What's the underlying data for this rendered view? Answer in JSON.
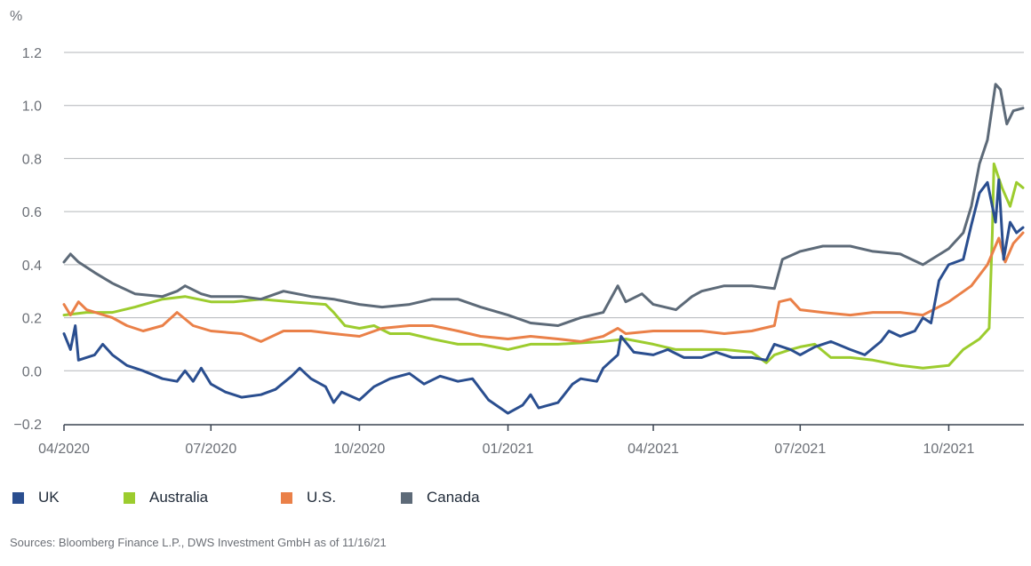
{
  "chart_data": {
    "type": "line",
    "title": "",
    "xlabel": "",
    "ylabel": "%",
    "ylim": [
      -0.2,
      1.2
    ],
    "xlim": [
      "2020-04-01",
      "2021-11-16"
    ],
    "grid": true,
    "legend_position": "bottom",
    "y_ticks": [
      "1.2",
      "1.0",
      "0.8",
      "0.6",
      "0.4",
      "0.2",
      "0.0",
      "−0.2"
    ],
    "x_ticks": [
      "04/2020",
      "07/2020",
      "10/2020",
      "01/2021",
      "04/2021",
      "07/2021",
      "10/2021"
    ],
    "x_tick_dates": [
      "2020-04-01",
      "2020-07-01",
      "2020-10-01",
      "2021-01-01",
      "2021-04-01",
      "2021-07-01",
      "2021-10-01"
    ],
    "series": [
      {
        "name": "UK",
        "color": "#2a4e8f",
        "points": [
          [
            "2020-04-01",
            0.14
          ],
          [
            "2020-04-05",
            0.08
          ],
          [
            "2020-04-08",
            0.17
          ],
          [
            "2020-04-10",
            0.04
          ],
          [
            "2020-04-20",
            0.06
          ],
          [
            "2020-04-25",
            0.1
          ],
          [
            "2020-05-01",
            0.06
          ],
          [
            "2020-05-10",
            0.02
          ],
          [
            "2020-05-20",
            0.0
          ],
          [
            "2020-06-01",
            -0.03
          ],
          [
            "2020-06-10",
            -0.04
          ],
          [
            "2020-06-15",
            0.0
          ],
          [
            "2020-06-20",
            -0.04
          ],
          [
            "2020-06-25",
            0.01
          ],
          [
            "2020-07-01",
            -0.05
          ],
          [
            "2020-07-10",
            -0.08
          ],
          [
            "2020-07-20",
            -0.1
          ],
          [
            "2020-08-01",
            -0.09
          ],
          [
            "2020-08-10",
            -0.07
          ],
          [
            "2020-08-20",
            -0.02
          ],
          [
            "2020-08-25",
            0.01
          ],
          [
            "2020-09-01",
            -0.03
          ],
          [
            "2020-09-10",
            -0.06
          ],
          [
            "2020-09-15",
            -0.12
          ],
          [
            "2020-09-20",
            -0.08
          ],
          [
            "2020-10-01",
            -0.11
          ],
          [
            "2020-10-10",
            -0.06
          ],
          [
            "2020-10-20",
            -0.03
          ],
          [
            "2020-11-01",
            -0.01
          ],
          [
            "2020-11-10",
            -0.05
          ],
          [
            "2020-11-20",
            -0.02
          ],
          [
            "2020-12-01",
            -0.04
          ],
          [
            "2020-12-10",
            -0.03
          ],
          [
            "2020-12-20",
            -0.11
          ],
          [
            "2021-01-01",
            -0.16
          ],
          [
            "2021-01-10",
            -0.13
          ],
          [
            "2021-01-15",
            -0.09
          ],
          [
            "2021-01-20",
            -0.14
          ],
          [
            "2021-02-01",
            -0.12
          ],
          [
            "2021-02-10",
            -0.05
          ],
          [
            "2021-02-15",
            -0.03
          ],
          [
            "2021-02-25",
            -0.04
          ],
          [
            "2021-03-01",
            0.01
          ],
          [
            "2021-03-10",
            0.06
          ],
          [
            "2021-03-12",
            0.13
          ],
          [
            "2021-03-20",
            0.07
          ],
          [
            "2021-04-01",
            0.06
          ],
          [
            "2021-04-10",
            0.08
          ],
          [
            "2021-04-20",
            0.05
          ],
          [
            "2021-05-01",
            0.05
          ],
          [
            "2021-05-10",
            0.07
          ],
          [
            "2021-05-20",
            0.05
          ],
          [
            "2021-06-01",
            0.05
          ],
          [
            "2021-06-10",
            0.04
          ],
          [
            "2021-06-15",
            0.1
          ],
          [
            "2021-06-20",
            0.09
          ],
          [
            "2021-06-25",
            0.08
          ],
          [
            "2021-07-01",
            0.06
          ],
          [
            "2021-07-10",
            0.09
          ],
          [
            "2021-07-20",
            0.11
          ],
          [
            "2021-08-01",
            0.08
          ],
          [
            "2021-08-10",
            0.06
          ],
          [
            "2021-08-20",
            0.11
          ],
          [
            "2021-08-25",
            0.15
          ],
          [
            "2021-09-01",
            0.13
          ],
          [
            "2021-09-10",
            0.15
          ],
          [
            "2021-09-15",
            0.2
          ],
          [
            "2021-09-20",
            0.18
          ],
          [
            "2021-09-25",
            0.34
          ],
          [
            "2021-10-01",
            0.4
          ],
          [
            "2021-10-10",
            0.42
          ],
          [
            "2021-10-15",
            0.55
          ],
          [
            "2021-10-20",
            0.67
          ],
          [
            "2021-10-25",
            0.71
          ],
          [
            "2021-10-30",
            0.56
          ],
          [
            "2021-11-01",
            0.72
          ],
          [
            "2021-11-04",
            0.42
          ],
          [
            "2021-11-08",
            0.56
          ],
          [
            "2021-11-12",
            0.52
          ],
          [
            "2021-11-16",
            0.54
          ]
        ]
      },
      {
        "name": "Australia",
        "color": "#9ccc2e",
        "points": [
          [
            "2020-04-01",
            0.21
          ],
          [
            "2020-04-15",
            0.22
          ],
          [
            "2020-05-01",
            0.22
          ],
          [
            "2020-05-15",
            0.24
          ],
          [
            "2020-06-01",
            0.27
          ],
          [
            "2020-06-15",
            0.28
          ],
          [
            "2020-07-01",
            0.26
          ],
          [
            "2020-07-15",
            0.26
          ],
          [
            "2020-08-01",
            0.27
          ],
          [
            "2020-08-20",
            0.26
          ],
          [
            "2020-09-10",
            0.25
          ],
          [
            "2020-09-15",
            0.22
          ],
          [
            "2020-09-22",
            0.17
          ],
          [
            "2020-10-01",
            0.16
          ],
          [
            "2020-10-10",
            0.17
          ],
          [
            "2020-10-20",
            0.14
          ],
          [
            "2020-11-01",
            0.14
          ],
          [
            "2020-11-15",
            0.12
          ],
          [
            "2020-12-01",
            0.1
          ],
          [
            "2020-12-15",
            0.1
          ],
          [
            "2021-01-01",
            0.08
          ],
          [
            "2021-01-15",
            0.1
          ],
          [
            "2021-02-01",
            0.1
          ],
          [
            "2021-03-01",
            0.11
          ],
          [
            "2021-03-15",
            0.12
          ],
          [
            "2021-04-01",
            0.1
          ],
          [
            "2021-04-15",
            0.08
          ],
          [
            "2021-05-01",
            0.08
          ],
          [
            "2021-05-15",
            0.08
          ],
          [
            "2021-06-01",
            0.07
          ],
          [
            "2021-06-10",
            0.03
          ],
          [
            "2021-06-15",
            0.06
          ],
          [
            "2021-06-25",
            0.08
          ],
          [
            "2021-07-01",
            0.09
          ],
          [
            "2021-07-10",
            0.1
          ],
          [
            "2021-07-20",
            0.05
          ],
          [
            "2021-08-01",
            0.05
          ],
          [
            "2021-08-15",
            0.04
          ],
          [
            "2021-09-01",
            0.02
          ],
          [
            "2021-09-15",
            0.01
          ],
          [
            "2021-10-01",
            0.02
          ],
          [
            "2021-10-10",
            0.08
          ],
          [
            "2021-10-20",
            0.12
          ],
          [
            "2021-10-26",
            0.16
          ],
          [
            "2021-10-28",
            0.52
          ],
          [
            "2021-10-29",
            0.78
          ],
          [
            "2021-11-03",
            0.69
          ],
          [
            "2021-11-08",
            0.62
          ],
          [
            "2021-11-12",
            0.71
          ],
          [
            "2021-11-16",
            0.69
          ]
        ]
      },
      {
        "name": "U.S.",
        "color": "#ea8048",
        "points": [
          [
            "2020-04-01",
            0.25
          ],
          [
            "2020-04-05",
            0.21
          ],
          [
            "2020-04-10",
            0.26
          ],
          [
            "2020-04-15",
            0.23
          ],
          [
            "2020-05-01",
            0.2
          ],
          [
            "2020-05-10",
            0.17
          ],
          [
            "2020-05-20",
            0.15
          ],
          [
            "2020-06-01",
            0.17
          ],
          [
            "2020-06-10",
            0.22
          ],
          [
            "2020-06-20",
            0.17
          ],
          [
            "2020-07-01",
            0.15
          ],
          [
            "2020-07-20",
            0.14
          ],
          [
            "2020-08-01",
            0.11
          ],
          [
            "2020-08-15",
            0.15
          ],
          [
            "2020-09-01",
            0.15
          ],
          [
            "2020-09-15",
            0.14
          ],
          [
            "2020-10-01",
            0.13
          ],
          [
            "2020-10-15",
            0.16
          ],
          [
            "2020-11-01",
            0.17
          ],
          [
            "2020-11-15",
            0.17
          ],
          [
            "2020-12-01",
            0.15
          ],
          [
            "2020-12-15",
            0.13
          ],
          [
            "2021-01-01",
            0.12
          ],
          [
            "2021-01-15",
            0.13
          ],
          [
            "2021-02-01",
            0.12
          ],
          [
            "2021-02-15",
            0.11
          ],
          [
            "2021-03-01",
            0.13
          ],
          [
            "2021-03-10",
            0.16
          ],
          [
            "2021-03-15",
            0.14
          ],
          [
            "2021-04-01",
            0.15
          ],
          [
            "2021-04-15",
            0.15
          ],
          [
            "2021-05-01",
            0.15
          ],
          [
            "2021-05-15",
            0.14
          ],
          [
            "2021-06-01",
            0.15
          ],
          [
            "2021-06-15",
            0.17
          ],
          [
            "2021-06-18",
            0.26
          ],
          [
            "2021-06-25",
            0.27
          ],
          [
            "2021-07-01",
            0.23
          ],
          [
            "2021-07-15",
            0.22
          ],
          [
            "2021-08-01",
            0.21
          ],
          [
            "2021-08-15",
            0.22
          ],
          [
            "2021-09-01",
            0.22
          ],
          [
            "2021-09-15",
            0.21
          ],
          [
            "2021-10-01",
            0.26
          ],
          [
            "2021-10-15",
            0.32
          ],
          [
            "2021-10-25",
            0.4
          ],
          [
            "2021-11-01",
            0.5
          ],
          [
            "2021-11-05",
            0.41
          ],
          [
            "2021-11-10",
            0.48
          ],
          [
            "2021-11-16",
            0.52
          ]
        ]
      },
      {
        "name": "Canada",
        "color": "#5d6a78",
        "points": [
          [
            "2020-04-01",
            0.41
          ],
          [
            "2020-04-05",
            0.44
          ],
          [
            "2020-04-10",
            0.41
          ],
          [
            "2020-04-20",
            0.37
          ],
          [
            "2020-05-01",
            0.33
          ],
          [
            "2020-05-15",
            0.29
          ],
          [
            "2020-06-01",
            0.28
          ],
          [
            "2020-06-10",
            0.3
          ],
          [
            "2020-06-15",
            0.32
          ],
          [
            "2020-06-25",
            0.29
          ],
          [
            "2020-07-01",
            0.28
          ],
          [
            "2020-07-20",
            0.28
          ],
          [
            "2020-08-01",
            0.27
          ],
          [
            "2020-08-15",
            0.3
          ],
          [
            "2020-09-01",
            0.28
          ],
          [
            "2020-09-15",
            0.27
          ],
          [
            "2020-10-01",
            0.25
          ],
          [
            "2020-10-15",
            0.24
          ],
          [
            "2020-11-01",
            0.25
          ],
          [
            "2020-11-15",
            0.27
          ],
          [
            "2020-12-01",
            0.27
          ],
          [
            "2020-12-15",
            0.24
          ],
          [
            "2021-01-01",
            0.21
          ],
          [
            "2021-01-15",
            0.18
          ],
          [
            "2021-02-01",
            0.17
          ],
          [
            "2021-02-15",
            0.2
          ],
          [
            "2021-03-01",
            0.22
          ],
          [
            "2021-03-10",
            0.32
          ],
          [
            "2021-03-15",
            0.26
          ],
          [
            "2021-03-25",
            0.29
          ],
          [
            "2021-04-01",
            0.25
          ],
          [
            "2021-04-15",
            0.23
          ],
          [
            "2021-04-25",
            0.28
          ],
          [
            "2021-05-01",
            0.3
          ],
          [
            "2021-05-15",
            0.32
          ],
          [
            "2021-06-01",
            0.32
          ],
          [
            "2021-06-15",
            0.31
          ],
          [
            "2021-06-20",
            0.42
          ],
          [
            "2021-07-01",
            0.45
          ],
          [
            "2021-07-15",
            0.47
          ],
          [
            "2021-08-01",
            0.47
          ],
          [
            "2021-08-15",
            0.45
          ],
          [
            "2021-09-01",
            0.44
          ],
          [
            "2021-09-15",
            0.4
          ],
          [
            "2021-10-01",
            0.46
          ],
          [
            "2021-10-10",
            0.52
          ],
          [
            "2021-10-15",
            0.62
          ],
          [
            "2021-10-20",
            0.78
          ],
          [
            "2021-10-25",
            0.87
          ],
          [
            "2021-10-30",
            1.08
          ],
          [
            "2021-11-02",
            1.06
          ],
          [
            "2021-11-06",
            0.93
          ],
          [
            "2021-11-10",
            0.98
          ],
          [
            "2021-11-16",
            0.99
          ]
        ]
      }
    ]
  },
  "legend": {
    "items": [
      {
        "label": "UK",
        "color": "#2a4e8f"
      },
      {
        "label": "Australia",
        "color": "#9ccc2e"
      },
      {
        "label": "U.S.",
        "color": "#ea8048"
      },
      {
        "label": "Canada",
        "color": "#5d6a78"
      }
    ]
  },
  "footer": {
    "source": "Sources: Bloomberg Finance L.P., DWS Investment GmbH as of 11/16/21"
  }
}
